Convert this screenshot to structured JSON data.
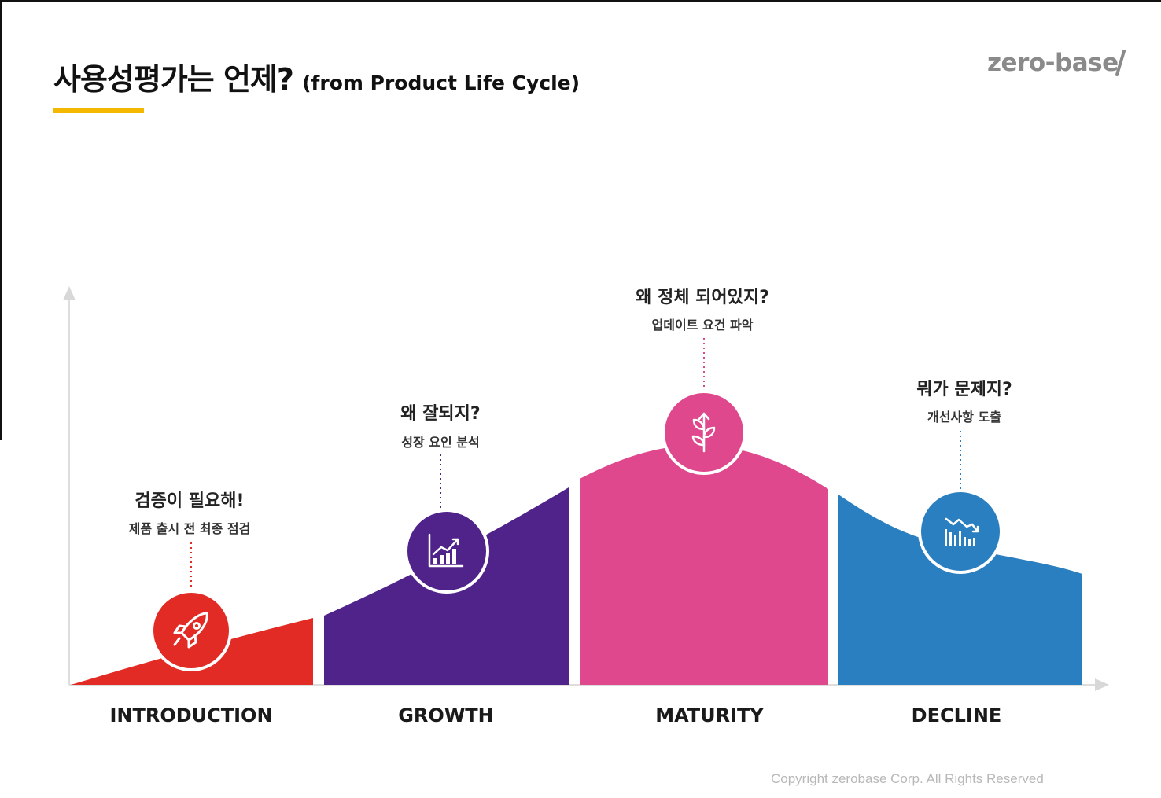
{
  "header": {
    "title": "사용성평가는 언제?",
    "subtitle": "(from Product Life Cycle)",
    "logo": "zero-base"
  },
  "colors": {
    "accent_underline": "#f5b800",
    "introduction": "#e22b24",
    "growth": "#50238b",
    "maturity": "#e0488d",
    "decline": "#2a7fc0"
  },
  "stages": [
    {
      "label": "INTRODUCTION",
      "question": "검증이 필요해!",
      "detail": "제품 출시 전 최종 점검",
      "icon": "rocket-icon"
    },
    {
      "label": "GROWTH",
      "question": "왜 잘되지?",
      "detail": "성장 요인 분석",
      "icon": "growth-chart-icon"
    },
    {
      "label": "MATURITY",
      "question": "왜 정체 되어있지?",
      "detail": "업데이트 요건 파악",
      "icon": "sprout-icon"
    },
    {
      "label": "DECLINE",
      "question": "뭐가 문제지?",
      "detail": "개선사항 도출",
      "icon": "decline-chart-icon"
    }
  ],
  "footer": {
    "copyright": "Copyright zerobase Corp. All Rights Reserved"
  }
}
